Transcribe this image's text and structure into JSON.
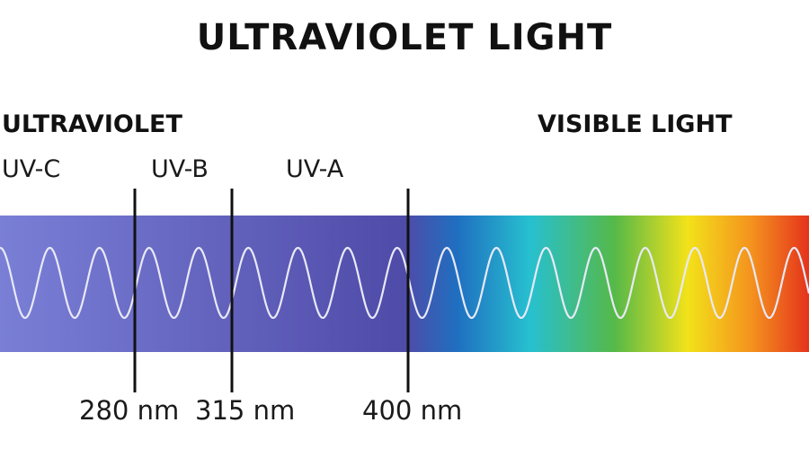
{
  "title": "ULTRAVIOLET LIGHT",
  "sections": {
    "ultraviolet": "ULTRAVIOLET",
    "visible": "VISIBLE LIGHT"
  },
  "bands": [
    {
      "name": "UV-C"
    },
    {
      "name": "UV-B"
    },
    {
      "name": "UV-A"
    }
  ],
  "boundaries": [
    {
      "label": "280 nm",
      "value": 280
    },
    {
      "label": "315 nm",
      "value": 315
    },
    {
      "label": "400 nm",
      "value": 400
    }
  ],
  "colors": {
    "uv_start": "#7a7fd6",
    "uv_end": "#4f4ba8",
    "blue": "#1f6fc0",
    "cyan": "#27c0d0",
    "green": "#56b948",
    "yellow": "#f3e21a",
    "orange": "#f4911e",
    "red": "#e4331c",
    "wave": "#e9e9f7",
    "divider": "#111111"
  }
}
